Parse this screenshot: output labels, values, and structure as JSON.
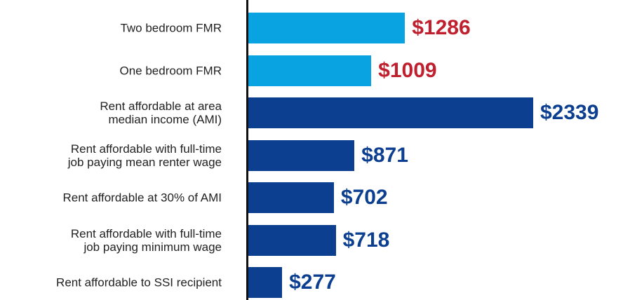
{
  "chart_data": {
    "type": "barh",
    "categories": [
      "Two bedroom FMR",
      "One bedroom FMR",
      "Rent affordable at area\nmedian income (AMI)",
      "Rent affordable with full-time\njob paying mean renter wage",
      "Rent affordable at 30% of AMI",
      "Rent affordable with full-time\njob paying minimum wage",
      "Rent affordable to SSI recipient"
    ],
    "values": [
      1286,
      1009,
      2339,
      871,
      702,
      718,
      277
    ],
    "value_labels": [
      "$1286",
      "$1009",
      "$2339",
      "$871",
      "$702",
      "$718",
      "$277"
    ],
    "colors": [
      "#0aa3e2",
      "#0aa3e2",
      "#0d3f91",
      "#0d3f91",
      "#0d3f91",
      "#0d3f91",
      "#0d3f91"
    ],
    "label_colors": [
      "#c0202e",
      "#c0202e",
      "#0d3f91",
      "#0d3f91",
      "#0d3f91",
      "#0d3f91",
      "#0d3f91"
    ]
  }
}
